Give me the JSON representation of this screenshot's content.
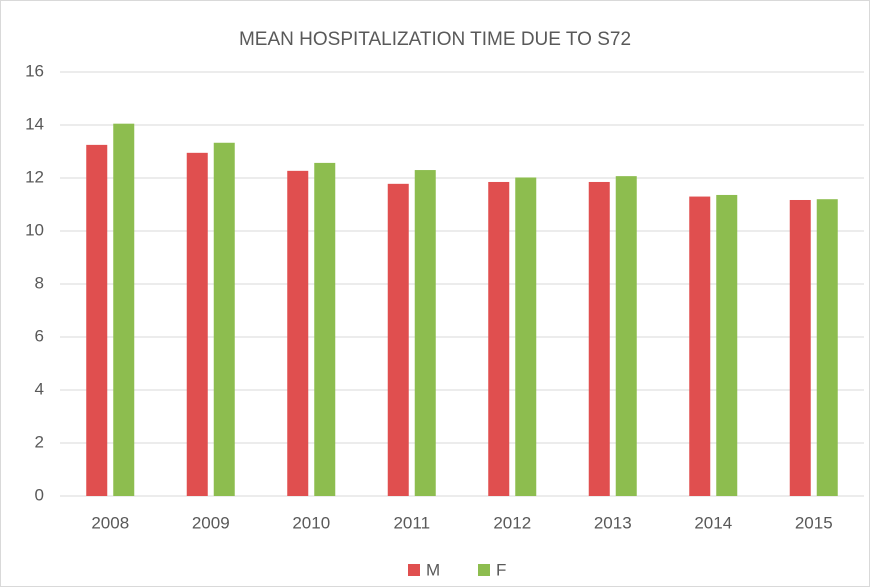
{
  "chart_data": {
    "type": "bar",
    "title": "MEAN HOSPITALIZATION TIME DUE TO S72",
    "categories": [
      "2008",
      "2009",
      "2010",
      "2011",
      "2012",
      "2013",
      "2014",
      "2015"
    ],
    "series": [
      {
        "name": "M",
        "color": "#e04f4f",
        "values": [
          13.25,
          12.95,
          12.27,
          11.78,
          11.85,
          11.85,
          11.3,
          11.17
        ]
      },
      {
        "name": "F",
        "color": "#8dbd4f",
        "values": [
          14.05,
          13.33,
          12.57,
          12.3,
          12.02,
          12.07,
          11.36,
          11.2
        ]
      }
    ],
    "ylim": [
      0,
      16
    ],
    "yticks": [
      0,
      2,
      4,
      6,
      8,
      10,
      12,
      14,
      16
    ],
    "grid": true,
    "legend": "bottom"
  }
}
